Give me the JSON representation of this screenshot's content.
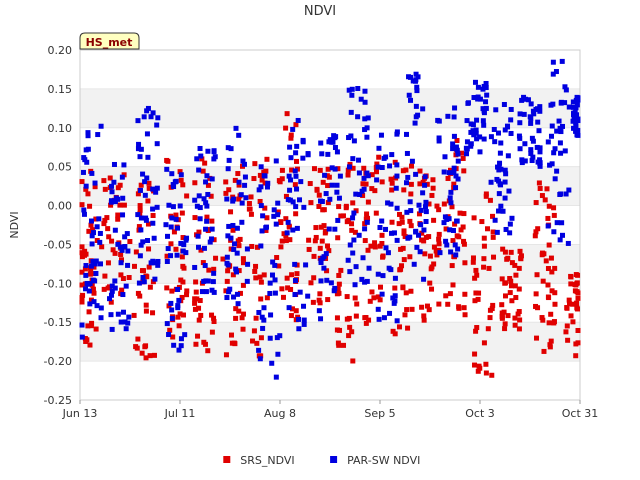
{
  "chart_data": {
    "type": "scatter",
    "title": "NDVI",
    "badge": "HS_met",
    "xlabel": "",
    "ylabel": "NDVI",
    "ylim": [
      -0.25,
      0.2
    ],
    "yticks": [
      0.2,
      0.15,
      0.1,
      0.05,
      0.0,
      -0.05,
      -0.1,
      -0.15,
      -0.2,
      -0.25
    ],
    "ytick_labels": [
      "0.20",
      "0.15",
      "0.10",
      "0.05",
      "0.00",
      "-0.05",
      "-0.10",
      "-0.15",
      "-0.20",
      "-0.25"
    ],
    "xlim_days": [
      0,
      140
    ],
    "xticks": [
      {
        "label": "Jun 13",
        "day": 0
      },
      {
        "label": "Jul 11",
        "day": 28
      },
      {
        "label": "Aug 8",
        "day": 56
      },
      {
        "label": "Sep 5",
        "day": 84
      },
      {
        "label": "Oct 3",
        "day": 112
      },
      {
        "label": "Oct 31",
        "day": 140
      }
    ],
    "grid": "alternating horizontal bands",
    "legend_position": "bottom",
    "series": [
      {
        "name": "SRS_NDVI",
        "color": "#e00000",
        "clusters": [
          {
            "day": 2,
            "spread": 3,
            "hi": 0.05,
            "lo": -0.18,
            "n": 45
          },
          {
            "day": 10,
            "spread": 4,
            "hi": 0.04,
            "lo": -0.13,
            "n": 40
          },
          {
            "day": 18,
            "spread": 3,
            "hi": 0.03,
            "lo": -0.2,
            "n": 40
          },
          {
            "day": 27,
            "spread": 3,
            "hi": 0.06,
            "lo": -0.17,
            "n": 40
          },
          {
            "day": 35,
            "spread": 3,
            "hi": 0.07,
            "lo": -0.19,
            "n": 40
          },
          {
            "day": 43,
            "spread": 3,
            "hi": 0.06,
            "lo": -0.2,
            "n": 40
          },
          {
            "day": 50,
            "spread": 3,
            "hi": 0.06,
            "lo": -0.2,
            "n": 35
          },
          {
            "day": 58,
            "spread": 3,
            "hi": 0.12,
            "lo": -0.15,
            "n": 45
          },
          {
            "day": 67,
            "spread": 3,
            "hi": 0.08,
            "lo": -0.13,
            "n": 40
          },
          {
            "day": 75,
            "spread": 3,
            "hi": 0.07,
            "lo": -0.2,
            "n": 40
          },
          {
            "day": 82,
            "spread": 3,
            "hi": 0.07,
            "lo": -0.19,
            "n": 40
          },
          {
            "day": 90,
            "spread": 3,
            "hi": 0.06,
            "lo": -0.17,
            "n": 40
          },
          {
            "day": 98,
            "spread": 3,
            "hi": 0.06,
            "lo": -0.15,
            "n": 40
          },
          {
            "day": 105,
            "spread": 3,
            "hi": 0.09,
            "lo": -0.15,
            "n": 40
          },
          {
            "day": 113,
            "spread": 3,
            "hi": 0.02,
            "lo": -0.22,
            "n": 40
          },
          {
            "day": 121,
            "spread": 3,
            "hi": -0.05,
            "lo": -0.16,
            "n": 40
          },
          {
            "day": 130,
            "spread": 3,
            "hi": 0.03,
            "lo": -0.19,
            "n": 45
          },
          {
            "day": 138,
            "spread": 2,
            "hi": -0.08,
            "lo": -0.2,
            "n": 30
          }
        ]
      },
      {
        "name": "PAR-SW NDVI",
        "color": "#0000e0",
        "clusters": [
          {
            "day": 3,
            "spread": 3,
            "hi": 0.11,
            "lo": -0.17,
            "n": 45
          },
          {
            "day": 11,
            "spread": 3,
            "hi": 0.06,
            "lo": -0.16,
            "n": 40
          },
          {
            "day": 19,
            "spread": 3,
            "hi": 0.13,
            "lo": -0.1,
            "n": 45
          },
          {
            "day": 27,
            "spread": 3,
            "hi": 0.05,
            "lo": -0.19,
            "n": 40
          },
          {
            "day": 35,
            "spread": 3,
            "hi": 0.1,
            "lo": -0.12,
            "n": 40
          },
          {
            "day": 44,
            "spread": 3,
            "hi": 0.1,
            "lo": -0.14,
            "n": 40
          },
          {
            "day": 53,
            "spread": 3,
            "hi": 0.1,
            "lo": -0.23,
            "n": 40
          },
          {
            "day": 61,
            "spread": 3,
            "hi": 0.11,
            "lo": -0.16,
            "n": 40
          },
          {
            "day": 70,
            "spread": 3,
            "hi": 0.09,
            "lo": -0.15,
            "n": 40
          },
          {
            "day": 78,
            "spread": 3,
            "hi": 0.16,
            "lo": -0.11,
            "n": 45
          },
          {
            "day": 86,
            "spread": 3,
            "hi": 0.1,
            "lo": -0.15,
            "n": 40
          },
          {
            "day": 94,
            "spread": 3,
            "hi": 0.17,
            "lo": -0.1,
            "n": 45
          },
          {
            "day": 103,
            "spread": 3,
            "hi": 0.14,
            "lo": -0.08,
            "n": 40
          },
          {
            "day": 111,
            "spread": 3,
            "hi": 0.16,
            "lo": 0.06,
            "n": 40
          },
          {
            "day": 118,
            "spread": 3,
            "hi": 0.14,
            "lo": -0.04,
            "n": 40
          },
          {
            "day": 126,
            "spread": 3,
            "hi": 0.14,
            "lo": 0.05,
            "n": 40
          },
          {
            "day": 134,
            "spread": 3,
            "hi": 0.19,
            "lo": -0.05,
            "n": 40
          },
          {
            "day": 139,
            "spread": 1,
            "hi": 0.14,
            "lo": 0.09,
            "n": 25
          }
        ]
      }
    ]
  }
}
